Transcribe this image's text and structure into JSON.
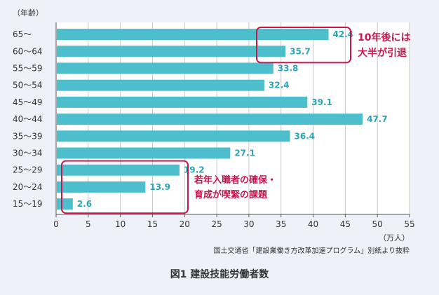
{
  "chart_data": {
    "type": "bar",
    "orientation": "horizontal",
    "y_unit_label": "（年齢）",
    "x_unit_label": "（万人）",
    "categories": [
      "65～",
      "60～64",
      "55～59",
      "50～54",
      "45～49",
      "40～44",
      "35～39",
      "30～34",
      "25～29",
      "20～24",
      "15～19"
    ],
    "values": [
      42.4,
      35.7,
      33.8,
      32.4,
      39.1,
      47.7,
      36.4,
      27.1,
      19.2,
      13.9,
      2.6
    ],
    "xlim": [
      0,
      55
    ],
    "xticks": [
      0,
      5,
      10,
      15,
      20,
      25,
      30,
      35,
      40,
      45,
      50,
      55
    ],
    "grid": true,
    "bar_color": "#4dbfcc",
    "value_label_color": "#2aa5b5",
    "annotations": [
      {
        "lines": [
          "10年後には",
          "大半が引退"
        ],
        "highlight_categories": [
          "65～",
          "60～64"
        ],
        "color": "#c8174f"
      },
      {
        "lines": [
          "若年入職者の確保・",
          "育成が喫緊の課題"
        ],
        "highlight_categories": [
          "25～29",
          "20～24",
          "15～19"
        ],
        "color": "#c8174f"
      }
    ],
    "source": "国土交通省「建設業働き方改革加速プログラム」別紙より抜粋",
    "title": "図1  建設技能労働者数"
  }
}
